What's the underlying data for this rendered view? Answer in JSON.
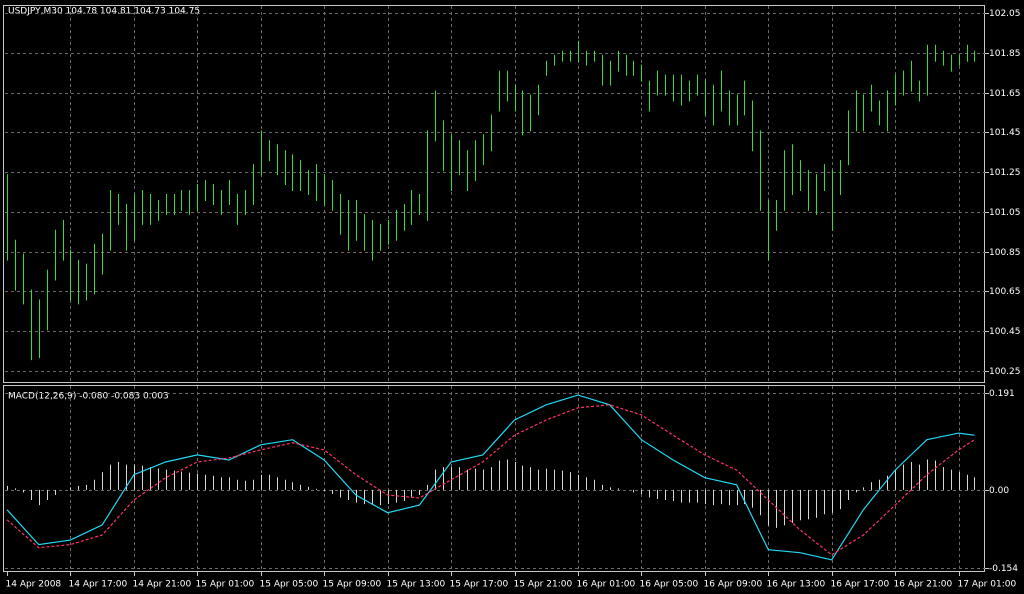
{
  "chart_data": [
    {
      "type": "ohlc",
      "title": "USDJPY,M30  104.78 104.81 104.73 104.75",
      "color": "#33dd33",
      "grid": true,
      "ylim": [
        100.19,
        102.09
      ],
      "yticks": [
        102.05,
        101.85,
        101.65,
        101.45,
        101.25,
        101.05,
        100.85,
        100.65,
        100.45,
        100.25
      ],
      "high": [
        101.24,
        100.91,
        100.84,
        100.66,
        100.61,
        100.76,
        100.96,
        101.01,
        100.86,
        100.81,
        100.79,
        100.89,
        100.94,
        101.16,
        101.14,
        101.09,
        101.14,
        101.16,
        101.14,
        101.11,
        101.14,
        101.14,
        101.16,
        101.16,
        101.19,
        101.21,
        101.19,
        101.16,
        101.21,
        101.14,
        101.16,
        101.29,
        101.46,
        101.41,
        101.39,
        101.36,
        101.34,
        101.31,
        101.26,
        101.29,
        101.24,
        101.21,
        101.14,
        101.11,
        101.11,
        101.04,
        101.01,
        100.99,
        101.01,
        101.06,
        101.09,
        101.16,
        101.14,
        101.46,
        101.66,
        101.51,
        101.44,
        101.41,
        101.36,
        101.41,
        101.44,
        101.54,
        101.76,
        101.76,
        101.69,
        101.66,
        101.64,
        101.69,
        101.81,
        101.84,
        101.86,
        101.86,
        101.91,
        101.86,
        101.86,
        101.84,
        101.81,
        101.86,
        101.84,
        101.81,
        101.79,
        101.71,
        101.76,
        101.74,
        101.74,
        101.74,
        101.71,
        101.74,
        101.71,
        101.69,
        101.76,
        101.66,
        101.64,
        101.71,
        101.61,
        101.46,
        101.11,
        101.11,
        101.36,
        101.39,
        101.31,
        101.26,
        101.24,
        101.29,
        101.26,
        101.31,
        101.56,
        101.66,
        101.64,
        101.69,
        101.61,
        101.66,
        101.74,
        101.76,
        101.81,
        101.71,
        101.89,
        101.89,
        101.86,
        101.84,
        101.84,
        101.89,
        101.86
      ],
      "low": [
        100.81,
        100.66,
        100.59,
        100.31,
        100.32,
        100.46,
        100.71,
        100.81,
        100.61,
        100.59,
        100.61,
        100.64,
        100.74,
        100.86,
        100.99,
        100.86,
        100.91,
        100.99,
        100.99,
        101.01,
        101.04,
        101.04,
        101.06,
        101.04,
        101.06,
        101.11,
        101.09,
        101.04,
        101.09,
        100.99,
        101.04,
        101.09,
        101.24,
        101.31,
        101.24,
        101.19,
        101.16,
        101.16,
        101.14,
        101.11,
        101.09,
        101.06,
        100.94,
        100.86,
        100.91,
        100.86,
        100.81,
        100.86,
        100.89,
        100.91,
        100.96,
        100.99,
        101.04,
        101.01,
        101.41,
        101.26,
        101.16,
        101.24,
        101.16,
        101.21,
        101.29,
        101.36,
        101.56,
        101.61,
        101.56,
        101.44,
        101.46,
        101.54,
        101.74,
        101.79,
        101.81,
        101.81,
        101.81,
        101.79,
        101.81,
        101.69,
        101.69,
        101.76,
        101.74,
        101.74,
        101.71,
        101.56,
        101.64,
        101.64,
        101.61,
        101.59,
        101.61,
        101.64,
        101.54,
        101.49,
        101.56,
        101.49,
        101.49,
        101.54,
        101.36,
        101.06,
        100.81,
        100.96,
        101.06,
        101.14,
        101.16,
        101.06,
        101.04,
        101.16,
        100.96,
        101.14,
        101.29,
        101.46,
        101.46,
        101.56,
        101.49,
        101.46,
        101.59,
        101.64,
        101.66,
        101.61,
        101.64,
        101.81,
        101.79,
        101.76,
        101.79,
        101.81,
        101.81
      ]
    },
    {
      "type": "macd",
      "title": "MACD(12,26,9) -0.080 -0.083 0.003",
      "grid": true,
      "ylim": [
        -0.162,
        0.207
      ],
      "yticks": [
        0.191,
        {
          "value": 0,
          "label": "0.00"
        },
        -0.154
      ],
      "histogram": {
        "color": "#d8d8d8",
        "values": [
          0.008,
          0.003,
          -0.005,
          -0.02,
          -0.03,
          -0.02,
          -0.01,
          0,
          0.005,
          0.008,
          0.01,
          0.02,
          0.035,
          0.05,
          0.055,
          0.05,
          0.05,
          0.048,
          0.045,
          0.042,
          0.04,
          0.038,
          0.036,
          0.034,
          0.032,
          0.03,
          0.028,
          0.025,
          0.025,
          0.02,
          0.018,
          0.02,
          0.03,
          0.03,
          0.025,
          0.02,
          0.015,
          0.01,
          0.006,
          0.002,
          -0.003,
          -0.008,
          -0.015,
          -0.02,
          -0.025,
          -0.028,
          -0.03,
          -0.03,
          -0.028,
          -0.025,
          -0.022,
          -0.015,
          -0.01,
          0.01,
          0.04,
          0.045,
          0.045,
          0.045,
          0.04,
          0.042,
          0.04,
          0.045,
          0.058,
          0.06,
          0.055,
          0.048,
          0.045,
          0.04,
          0.042,
          0.04,
          0.038,
          0.035,
          0.03,
          0.025,
          0.02,
          0.01,
          0.005,
          0.003,
          0,
          -0.005,
          -0.008,
          -0.015,
          -0.018,
          -0.02,
          -0.022,
          -0.025,
          -0.025,
          -0.025,
          -0.028,
          -0.03,
          -0.028,
          -0.03,
          -0.03,
          -0.028,
          -0.035,
          -0.05,
          -0.07,
          -0.075,
          -0.07,
          -0.065,
          -0.06,
          -0.058,
          -0.055,
          -0.048,
          -0.045,
          -0.038,
          -0.02,
          -0.005,
          0.005,
          0.015,
          0.02,
          0.028,
          0.04,
          0.05,
          0.055,
          0.05,
          0.06,
          0.058,
          0.045,
          0.04,
          0.035,
          0.03,
          0.025
        ]
      },
      "x": [
        0,
        4,
        8,
        12,
        16,
        20,
        24,
        28,
        32,
        36,
        40,
        44,
        48,
        52,
        56,
        60,
        64,
        68,
        72,
        76,
        80,
        84,
        88,
        92,
        96,
        100,
        104,
        108,
        112,
        116,
        120,
        122
      ],
      "series": [
        {
          "color": "#22d8f0",
          "dash": false,
          "values": [
            -0.039,
            -0.108,
            -0.099,
            -0.069,
            0.03,
            0.055,
            0.069,
            0.059,
            0.089,
            0.099,
            0.059,
            -0.01,
            -0.045,
            -0.03,
            0.055,
            0.069,
            0.138,
            0.168,
            0.187,
            0.168,
            0.099,
            0.059,
            0.024,
            0.01,
            -0.118,
            -0.124,
            -0.138,
            -0.039,
            0.039,
            0.099,
            0.112,
            0.108
          ]
        },
        {
          "color": "#ff3366",
          "dash": true,
          "values": [
            -0.059,
            -0.114,
            -0.108,
            -0.089,
            -0.02,
            0.024,
            0.055,
            0.063,
            0.079,
            0.093,
            0.079,
            0.03,
            -0.01,
            -0.016,
            0.02,
            0.055,
            0.108,
            0.138,
            0.162,
            0.168,
            0.148,
            0.108,
            0.069,
            0.039,
            -0.02,
            -0.079,
            -0.128,
            -0.089,
            -0.03,
            0.03,
            0.079,
            0.099
          ]
        }
      ],
      "xlabels": [
        "14 Apr 2008",
        "14 Apr 17:00",
        "14 Apr 21:00",
        "15 Apr 01:00",
        "15 Apr 05:00",
        "15 Apr 09:00",
        "15 Apr 13:00",
        "15 Apr 17:00",
        "15 Apr 21:00",
        "16 Apr 01:00",
        "16 Apr 05:00",
        "16 Apr 09:00",
        "16 Apr 13:00",
        "16 Apr 17:00",
        "16 Apr 21:00",
        "17 Apr 01:00"
      ]
    }
  ]
}
